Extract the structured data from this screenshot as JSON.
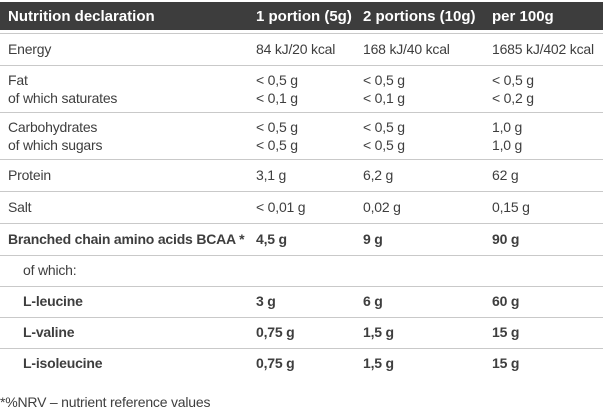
{
  "header": {
    "cells": [
      "Nutrition declaration",
      "1 portion (5g)",
      "2 portions (10g)",
      "per 100g"
    ]
  },
  "lines": [
    {
      "cells": [
        "Energy",
        "84 kJ/20 kcal",
        "168 kJ/40 kcal",
        "1685 kJ/402 kcal"
      ]
    },
    {
      "cells": [
        "Fat",
        "< 0,5 g",
        "< 0,5 g",
        "< 0,5 g"
      ]
    },
    {
      "cells": [
        "of which saturates",
        "< 0,1 g",
        "< 0,1 g",
        "< 0,2 g"
      ]
    },
    {
      "cells": [
        "Carbohydrates",
        "< 0,5 g",
        "< 0,5 g",
        "1,0 g"
      ]
    },
    {
      "cells": [
        "of which sugars",
        "< 0,5 g",
        "< 0,5 g",
        "1,0 g"
      ]
    },
    {
      "cells": [
        "Protein",
        "3,1 g",
        "6,2 g",
        "62 g"
      ]
    },
    {
      "cells": [
        "Salt",
        "< 0,01 g",
        "0,02 g",
        "0,15 g"
      ]
    },
    {
      "cells": [
        "Branched chain amino acids BCAA *",
        "4,5 g",
        "9 g",
        "90 g"
      ]
    },
    {
      "cells": [
        "of which:",
        "",
        "",
        ""
      ]
    },
    {
      "cells": [
        "L-leucine",
        "3 g",
        "6 g",
        "60 g"
      ]
    },
    {
      "cells": [
        "L-valine",
        "0,75 g",
        "1,5 g",
        "15 g"
      ]
    },
    {
      "cells": [
        "L-isoleucine",
        "0,75 g",
        "1,5 g",
        "15 g"
      ]
    }
  ],
  "footnote": "*%NRV – nutrient reference values",
  "colors": {
    "header_bg": "#3d3d3d",
    "header_text": "#ffffff",
    "body_text": "#3e3e3e",
    "border": "#c9c9c9"
  }
}
